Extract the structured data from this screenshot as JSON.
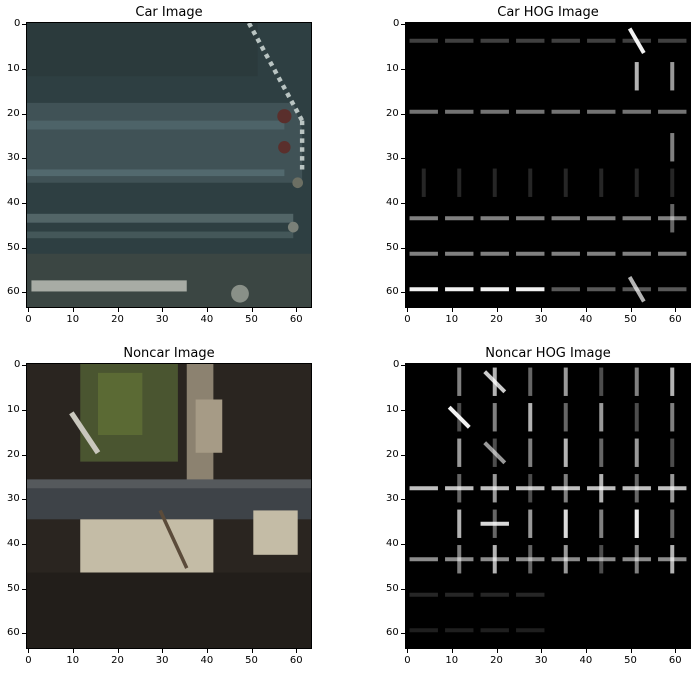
{
  "figure": {
    "panels": [
      {
        "id": "car",
        "title": "Car Image",
        "type": "image",
        "xticks": [
          "0",
          "10",
          "20",
          "30",
          "40",
          "50",
          "60"
        ],
        "yticks": [
          "0",
          "10",
          "20",
          "30",
          "40",
          "50",
          "60"
        ],
        "tick_values": [
          0,
          10,
          20,
          30,
          40,
          50,
          60
        ],
        "extent": [
          0,
          64
        ]
      },
      {
        "id": "car-hog",
        "title": "Car HOG Image",
        "type": "hog",
        "xticks": [
          "0",
          "10",
          "20",
          "30",
          "40",
          "50",
          "60"
        ],
        "yticks": [
          "0",
          "10",
          "20",
          "30",
          "40",
          "50",
          "60"
        ],
        "tick_values": [
          0,
          10,
          20,
          30,
          40,
          50,
          60
        ],
        "extent": [
          0,
          64
        ]
      },
      {
        "id": "noncar",
        "title": "Noncar Image",
        "type": "image",
        "xticks": [
          "0",
          "10",
          "20",
          "30",
          "40",
          "50",
          "60"
        ],
        "yticks": [
          "0",
          "10",
          "20",
          "30",
          "40",
          "50",
          "60"
        ],
        "tick_values": [
          0,
          10,
          20,
          30,
          40,
          50,
          60
        ],
        "extent": [
          0,
          64
        ]
      },
      {
        "id": "noncar-hog",
        "title": "Noncar HOG Image",
        "type": "hog",
        "xticks": [
          "0",
          "10",
          "20",
          "30",
          "40",
          "50",
          "60"
        ],
        "yticks": [
          "0",
          "10",
          "20",
          "30",
          "40",
          "50",
          "60"
        ],
        "tick_values": [
          0,
          10,
          20,
          30,
          40,
          50,
          60
        ],
        "extent": [
          0,
          64
        ]
      }
    ]
  },
  "colors": {
    "car_bg": "#2e3f42",
    "car_stripe": "#4b5f63",
    "car_light_stripe": "#a8aca5",
    "car_edge_dots": "#b9c4c2",
    "car_red": "#5a2f2c",
    "noncar_bg": "#2a2520",
    "noncar_tree": "#5b6a34",
    "noncar_panel": "#c4bca6",
    "noncar_bar": "#3e4348",
    "hog_bg": "#000000",
    "hog_line": "#ffffff"
  }
}
